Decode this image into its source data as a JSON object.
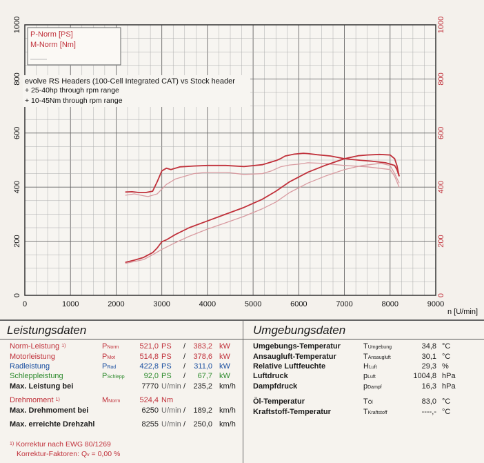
{
  "chart_data": {
    "type": "line",
    "title": "evolve RS Headers (100-Cell Integrated CAT) vs Stock header",
    "annotations": [
      "+ 25-40hp through rpm range",
      "+ 10-45Nm through rpm range"
    ],
    "legend": [
      "P-Norm [PS]",
      "M-Norm [Nm]"
    ],
    "legend_position": "top-left",
    "xlabel": "n [U/min]",
    "xlim": [
      0,
      9000
    ],
    "x_ticks": [
      "0",
      "1000",
      "2000",
      "3000",
      "4000",
      "5000",
      "6000",
      "7000",
      "8000",
      "9000"
    ],
    "ylim_left": [
      0,
      1000
    ],
    "y_ticks_left": [
      "0",
      "200",
      "400",
      "600",
      "800",
      "1000"
    ],
    "ylim_right": [
      0,
      1000
    ],
    "y_ticks_right": [
      "0",
      "200",
      "400",
      "600",
      "800",
      "1000"
    ],
    "grid": true,
    "colors": {
      "evolve": "#c0303a",
      "stock": "#d89aa0"
    },
    "series": [
      {
        "name": "evolve M-Norm [Nm]",
        "kind": "torque",
        "variant": "evolve",
        "x": [
          2200,
          2350,
          2500,
          2650,
          2800,
          2900,
          3000,
          3100,
          3200,
          3400,
          3700,
          4000,
          4400,
          4800,
          5200,
          5500,
          5600,
          5700,
          5900,
          6100,
          6200,
          6400,
          6700,
          7000,
          7300,
          7600,
          7900,
          8100,
          8150,
          8200
        ],
        "y": [
          382,
          383,
          380,
          380,
          385,
          420,
          460,
          470,
          465,
          475,
          478,
          480,
          480,
          476,
          483,
          498,
          505,
          515,
          522,
          525,
          524,
          520,
          515,
          505,
          500,
          496,
          490,
          480,
          465,
          440
        ]
      },
      {
        "name": "stock M-Norm [Nm]",
        "kind": "torque",
        "variant": "stock",
        "x": [
          2200,
          2400,
          2600,
          2700,
          2900,
          3100,
          3300,
          3700,
          4000,
          4400,
          4800,
          5200,
          5400,
          5600,
          5800,
          6000,
          6200,
          6500,
          7000,
          7500,
          8000,
          8100,
          8200
        ],
        "y": [
          370,
          375,
          368,
          365,
          375,
          410,
          430,
          450,
          455,
          455,
          447,
          450,
          460,
          475,
          482,
          485,
          490,
          488,
          480,
          475,
          465,
          440,
          400
        ]
      },
      {
        "name": "evolve P-Norm [PS]",
        "kind": "power",
        "variant": "evolve",
        "x": [
          2200,
          2400,
          2600,
          2800,
          2900,
          3000,
          3100,
          3300,
          3600,
          4000,
          4400,
          4800,
          5200,
          5500,
          5800,
          6200,
          6600,
          7000,
          7300,
          7500,
          7770,
          8000,
          8100,
          8150,
          8200
        ],
        "y": [
          122,
          130,
          140,
          158,
          175,
          198,
          205,
          225,
          250,
          275,
          300,
          325,
          355,
          385,
          420,
          455,
          482,
          505,
          516,
          519,
          521,
          519,
          505,
          480,
          440
        ]
      },
      {
        "name": "stock P-Norm [PS]",
        "kind": "power",
        "variant": "stock",
        "x": [
          2200,
          2400,
          2600,
          2800,
          3000,
          3300,
          3600,
          4000,
          4400,
          4800,
          5200,
          5500,
          5800,
          6200,
          6600,
          7000,
          7400,
          7800,
          8000,
          8100,
          8200
        ],
        "y": [
          118,
          125,
          132,
          150,
          170,
          195,
          218,
          245,
          268,
          292,
          320,
          345,
          380,
          415,
          442,
          465,
          480,
          488,
          480,
          450,
          415
        ]
      }
    ]
  },
  "leistung": {
    "title": "Leistungsdaten",
    "rows": [
      {
        "label": "Norm-Leistung",
        "mark": "1)",
        "sym": "P",
        "sub": "Norm",
        "v1": "521,0",
        "u1": "PS",
        "slash": "/",
        "v2": "383,2",
        "u2": "kW",
        "color": "red"
      },
      {
        "label": "Motorleistung",
        "sym": "P",
        "sub": "Mot",
        "v1": "514,8",
        "u1": "PS",
        "slash": "/",
        "v2": "378,6",
        "u2": "kW",
        "color": "red"
      },
      {
        "label": "Radleistung",
        "sym": "P",
        "sub": "Rad",
        "v1": "422,8",
        "u1": "PS",
        "slash": "/",
        "v2": "311,0",
        "u2": "kW",
        "color": "blue"
      },
      {
        "label": "Schleppleistung",
        "sym": "P",
        "sub": "Schlepp",
        "v1": "92,0",
        "u1": "PS",
        "slash": "/",
        "v2": "67,7",
        "u2": "kW",
        "color": "green"
      },
      {
        "label": "Max. Leistung bei",
        "v1": "7770",
        "u1": "U/min",
        "slash": "/",
        "v2": "235,2",
        "u2": "km/h",
        "color": "black"
      },
      {
        "label": "Drehmoment",
        "mark": "1)",
        "sym": "M",
        "sub": "Norm",
        "v1": "524,4",
        "u1": "Nm",
        "color": "red"
      },
      {
        "label": "Max. Drehmoment bei",
        "v1": "6250",
        "u1": "U/min",
        "slash": "/",
        "v2": "189,2",
        "u2": "km/h",
        "color": "black"
      },
      {
        "label": "Max. erreichte Drehzahl",
        "v1": "8255",
        "u1": "U/min",
        "slash": "/",
        "v2": "250,0",
        "u2": "km/h",
        "color": "black"
      }
    ],
    "foot1_mark": "1)",
    "foot1": "Korrektur nach EWG 80/1269",
    "foot2": "Korrektur-Faktoren: Q",
    "foot2_sub": "v",
    "foot2_val": "=   0,00 %"
  },
  "umgebung": {
    "title": "Umgebungsdaten",
    "rows": [
      {
        "label": "Umgebungs-Temperatur",
        "sym": "T",
        "sub": "Umgebung",
        "val": "34,8",
        "unit": "°C"
      },
      {
        "label": "Ansaugluft-Temperatur",
        "sym": "T",
        "sub": "Ansaugluft",
        "val": "30,1",
        "unit": "°C"
      },
      {
        "label": "Relative Luftfeuchte",
        "sym": "H",
        "sub": "Luft",
        "val": "29,3",
        "unit": "%"
      },
      {
        "label": "Luftdruck",
        "sym": "p",
        "sub": "Luft",
        "val": "1004,8",
        "unit": "hPa"
      },
      {
        "label": "Dampfdruck",
        "sym": "p",
        "sub": "Dampf",
        "val": "16,3",
        "unit": "hPa"
      },
      {
        "label": "Öl-Temperatur",
        "sym": "T",
        "sub": "Öl",
        "val": "83,0",
        "unit": "°C"
      },
      {
        "label": "Kraftstoff-Temperatur",
        "sym": "T",
        "sub": "Kraftstoff",
        "val": "----,-",
        "unit": "°C"
      }
    ]
  }
}
